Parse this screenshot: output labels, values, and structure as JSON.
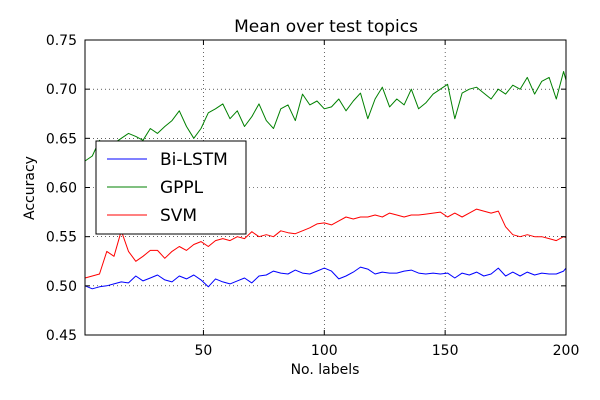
{
  "chart_data": {
    "type": "line",
    "title": "Mean over test topics",
    "xlabel": "No. labels",
    "ylabel": "Accuracy",
    "xlim": [
      1,
      200
    ],
    "ylim": [
      0.45,
      0.75
    ],
    "xticks": [
      50,
      100,
      150,
      200
    ],
    "yticks": [
      0.45,
      0.5,
      0.55,
      0.6,
      0.65,
      0.7,
      0.75
    ],
    "ytick_labels": [
      "0.45",
      "0.50",
      "0.55",
      "0.60",
      "0.65",
      "0.70",
      "0.75"
    ],
    "grid": true,
    "legend_position": "center-left",
    "series": [
      {
        "name": "Bi-LSTM",
        "color": "#0000ff",
        "x": [
          1,
          4,
          7,
          10,
          13,
          16,
          19,
          22,
          25,
          28,
          31,
          34,
          37,
          40,
          43,
          46,
          49,
          52,
          55,
          58,
          61,
          64,
          67,
          70,
          73,
          76,
          79,
          82,
          85,
          88,
          91,
          94,
          97,
          100,
          103,
          106,
          109,
          112,
          115,
          118,
          121,
          124,
          127,
          130,
          133,
          136,
          139,
          142,
          145,
          148,
          151,
          154,
          157,
          160,
          163,
          166,
          169,
          172,
          175,
          178,
          181,
          184,
          187,
          190,
          193,
          196,
          199,
          200
        ],
        "y": [
          0.5,
          0.497,
          0.499,
          0.5,
          0.502,
          0.504,
          0.503,
          0.51,
          0.505,
          0.508,
          0.511,
          0.506,
          0.504,
          0.51,
          0.507,
          0.511,
          0.506,
          0.499,
          0.507,
          0.504,
          0.502,
          0.505,
          0.508,
          0.503,
          0.51,
          0.511,
          0.515,
          0.513,
          0.512,
          0.516,
          0.513,
          0.512,
          0.515,
          0.518,
          0.515,
          0.507,
          0.51,
          0.514,
          0.519,
          0.517,
          0.512,
          0.514,
          0.513,
          0.513,
          0.515,
          0.516,
          0.513,
          0.512,
          0.513,
          0.512,
          0.513,
          0.508,
          0.513,
          0.511,
          0.514,
          0.51,
          0.512,
          0.518,
          0.51,
          0.514,
          0.51,
          0.514,
          0.511,
          0.513,
          0.512,
          0.512,
          0.515,
          0.518
        ]
      },
      {
        "name": "GPPL",
        "color": "#008000",
        "x": [
          1,
          4,
          7,
          10,
          13,
          16,
          19,
          22,
          25,
          28,
          31,
          34,
          37,
          40,
          43,
          46,
          49,
          52,
          55,
          58,
          61,
          64,
          67,
          70,
          73,
          76,
          79,
          82,
          85,
          88,
          91,
          94,
          97,
          100,
          103,
          106,
          109,
          112,
          115,
          118,
          121,
          124,
          127,
          130,
          133,
          136,
          139,
          142,
          145,
          148,
          151,
          154,
          157,
          160,
          163,
          166,
          169,
          172,
          175,
          178,
          181,
          184,
          187,
          190,
          193,
          196,
          199,
          200
        ],
        "y": [
          0.627,
          0.632,
          0.648,
          0.64,
          0.645,
          0.65,
          0.655,
          0.652,
          0.648,
          0.66,
          0.655,
          0.662,
          0.668,
          0.678,
          0.662,
          0.65,
          0.66,
          0.676,
          0.68,
          0.685,
          0.67,
          0.678,
          0.662,
          0.672,
          0.685,
          0.668,
          0.66,
          0.68,
          0.684,
          0.668,
          0.695,
          0.684,
          0.688,
          0.68,
          0.682,
          0.69,
          0.678,
          0.688,
          0.696,
          0.67,
          0.69,
          0.702,
          0.682,
          0.69,
          0.684,
          0.7,
          0.68,
          0.686,
          0.695,
          0.7,
          0.705,
          0.67,
          0.696,
          0.7,
          0.702,
          0.696,
          0.69,
          0.7,
          0.695,
          0.704,
          0.7,
          0.712,
          0.695,
          0.708,
          0.712,
          0.69,
          0.718,
          0.709
        ]
      },
      {
        "name": "SVM",
        "color": "#ff0000",
        "x": [
          1,
          4,
          7,
          10,
          13,
          16,
          19,
          22,
          25,
          28,
          31,
          34,
          37,
          40,
          43,
          46,
          49,
          52,
          55,
          58,
          61,
          64,
          67,
          70,
          73,
          76,
          79,
          82,
          85,
          88,
          91,
          94,
          97,
          100,
          103,
          106,
          109,
          112,
          115,
          118,
          121,
          124,
          127,
          130,
          133,
          136,
          139,
          142,
          145,
          148,
          151,
          154,
          157,
          160,
          163,
          166,
          169,
          172,
          175,
          178,
          181,
          184,
          187,
          190,
          193,
          196,
          199,
          200
        ],
        "y": [
          0.508,
          0.51,
          0.512,
          0.535,
          0.53,
          0.556,
          0.535,
          0.525,
          0.53,
          0.536,
          0.536,
          0.528,
          0.535,
          0.54,
          0.536,
          0.542,
          0.545,
          0.54,
          0.546,
          0.548,
          0.546,
          0.55,
          0.548,
          0.555,
          0.55,
          0.552,
          0.55,
          0.556,
          0.554,
          0.553,
          0.556,
          0.559,
          0.563,
          0.564,
          0.562,
          0.566,
          0.57,
          0.568,
          0.57,
          0.57,
          0.572,
          0.57,
          0.574,
          0.572,
          0.57,
          0.572,
          0.572,
          0.573,
          0.574,
          0.575,
          0.57,
          0.574,
          0.57,
          0.574,
          0.578,
          0.576,
          0.574,
          0.576,
          0.56,
          0.552,
          0.55,
          0.552,
          0.55,
          0.55,
          0.548,
          0.546,
          0.55,
          0.549
        ]
      }
    ]
  }
}
